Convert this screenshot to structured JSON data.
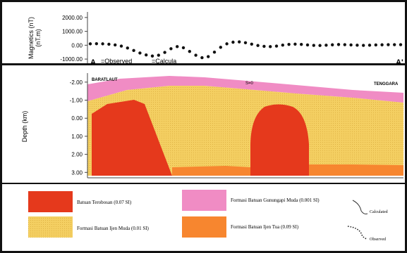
{
  "chart_data": [
    {
      "type": "scatter",
      "ylabel": "Magnetics (nT)",
      "ylabel2": "(nT.m)",
      "yticks": [
        "2000.00",
        "1000.00",
        "0.00",
        "-1000.00"
      ],
      "ylim": [
        -1300,
        2400
      ],
      "xlim": [
        0,
        100
      ],
      "profile_start": "A",
      "profile_end": "A'",
      "legend": {
        "observed": "=Observed",
        "calculated": "=Calcula"
      },
      "observed": {
        "x": [
          0,
          2,
          4,
          6,
          8,
          10,
          12,
          14,
          16,
          18,
          20,
          22,
          24,
          26,
          28,
          30,
          32,
          34,
          36,
          38,
          40,
          42,
          44,
          46,
          48,
          50,
          52,
          54,
          56,
          58,
          60,
          62,
          64,
          66,
          68,
          70,
          72,
          74,
          76,
          78,
          80,
          82,
          84,
          86,
          88,
          90,
          92,
          94,
          96,
          98,
          100
        ],
        "y": [
          100,
          110,
          100,
          70,
          20,
          -60,
          -200,
          -380,
          -560,
          -700,
          -780,
          -720,
          -520,
          -250,
          -100,
          -180,
          -450,
          -720,
          -900,
          -820,
          -500,
          -150,
          100,
          220,
          240,
          180,
          80,
          -20,
          -80,
          -100,
          -60,
          10,
          60,
          80,
          60,
          20,
          -10,
          -20,
          0,
          30,
          50,
          40,
          20,
          0,
          -10,
          0,
          20,
          30,
          40,
          40,
          40
        ]
      }
    },
    {
      "type": "area",
      "ylabel": "Depth (km)",
      "yticks": [
        "-2.00",
        "-1.00",
        "0.00",
        "1.00",
        "2.00",
        "3.00"
      ],
      "ylim": [
        -2.5,
        3.3
      ],
      "xlim": [
        0,
        100
      ],
      "label_left": "BARATLAUT",
      "label_mid": "S=0",
      "label_right": "TENGGARA"
    }
  ],
  "legend": {
    "terobosan": "Batuan Terobosan (0.07 SI)",
    "gunungapi": "Formasi Batuan Gunungapi Muda (0.001 SI)",
    "ijen_muda": "Formasi Batuan Ijen Muda (0.01 SI)",
    "ijen_tua": "Formasi Batuan Ijen Tua (0.09 SI)",
    "calculated": "Calculated",
    "observed": "Observed"
  },
  "colors": {
    "terobosan": "#e5391c",
    "gunungapi": "#f08cc4",
    "ijen_muda": "#f4cf62",
    "ijen_tua": "#f7862f"
  }
}
